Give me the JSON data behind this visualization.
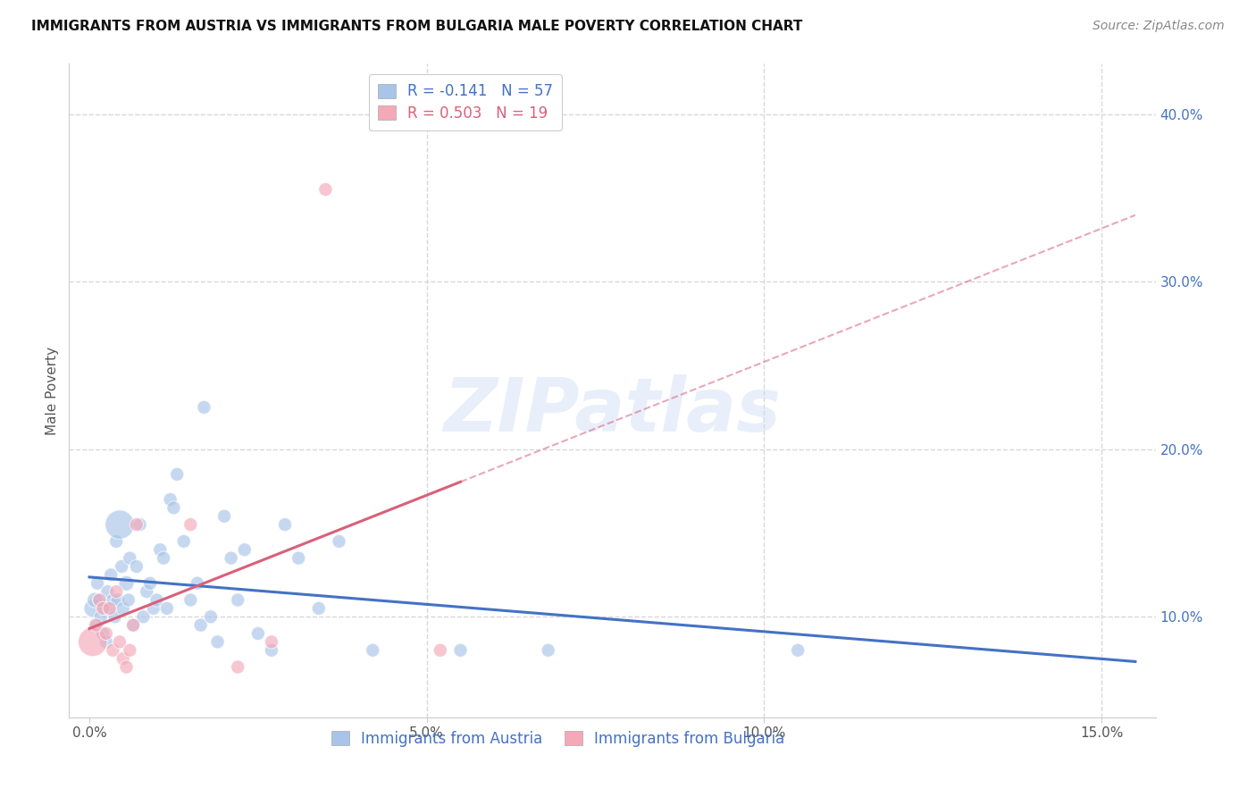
{
  "title": "IMMIGRANTS FROM AUSTRIA VS IMMIGRANTS FROM BULGARIA MALE POVERTY CORRELATION CHART",
  "source": "Source: ZipAtlas.com",
  "ylabel": "Male Poverty",
  "x_tick_labels": [
    "0.0%",
    "5.0%",
    "10.0%",
    "15.0%"
  ],
  "x_tick_values": [
    0.0,
    5.0,
    10.0,
    15.0
  ],
  "y_tick_labels": [
    "10.0%",
    "20.0%",
    "30.0%",
    "40.0%"
  ],
  "y_tick_values": [
    10.0,
    20.0,
    30.0,
    40.0
  ],
  "xlim": [
    -0.3,
    15.8
  ],
  "ylim": [
    4.0,
    43.0
  ],
  "austria_R": -0.141,
  "austria_N": 57,
  "bulgaria_R": 0.503,
  "bulgaria_N": 19,
  "austria_color": "#a8c4e8",
  "bulgaria_color": "#f4a8b8",
  "austria_line_color": "#4472c4",
  "bulgaria_line_color": "#d9607a",
  "legend_label_austria": "Immigrants from Austria",
  "legend_label_bulgaria": "Immigrants from Bulgaria",
  "watermark": "ZIPatlas",
  "background_color": "#ffffff",
  "grid_color": "#d8d8d8",
  "austria_x": [
    0.05,
    0.08,
    0.1,
    0.12,
    0.15,
    0.17,
    0.2,
    0.22,
    0.25,
    0.27,
    0.3,
    0.32,
    0.35,
    0.38,
    0.4,
    0.42,
    0.45,
    0.48,
    0.5,
    0.55,
    0.58,
    0.6,
    0.65,
    0.7,
    0.75,
    0.8,
    0.85,
    0.9,
    0.95,
    1.0,
    1.05,
    1.1,
    1.15,
    1.2,
    1.25,
    1.3,
    1.4,
    1.5,
    1.6,
    1.65,
    1.7,
    1.8,
    1.9,
    2.0,
    2.1,
    2.2,
    2.3,
    2.5,
    2.7,
    2.9,
    3.1,
    3.4,
    3.7,
    4.2,
    5.5,
    6.8,
    10.5
  ],
  "austria_y": [
    10.5,
    11.0,
    9.5,
    12.0,
    11.0,
    10.0,
    9.0,
    10.5,
    8.5,
    11.5,
    10.5,
    12.5,
    11.0,
    10.0,
    14.5,
    11.0,
    15.5,
    13.0,
    10.5,
    12.0,
    11.0,
    13.5,
    9.5,
    13.0,
    15.5,
    10.0,
    11.5,
    12.0,
    10.5,
    11.0,
    14.0,
    13.5,
    10.5,
    17.0,
    16.5,
    18.5,
    14.5,
    11.0,
    12.0,
    9.5,
    22.5,
    10.0,
    8.5,
    16.0,
    13.5,
    11.0,
    14.0,
    9.0,
    8.0,
    15.5,
    13.5,
    10.5,
    14.5,
    8.0,
    8.0,
    8.0,
    8.0
  ],
  "austria_sizes": [
    200,
    150,
    150,
    120,
    120,
    120,
    120,
    120,
    120,
    120,
    150,
    120,
    120,
    120,
    120,
    120,
    550,
    120,
    120,
    150,
    120,
    120,
    120,
    120,
    120,
    120,
    120,
    120,
    120,
    120,
    120,
    120,
    120,
    120,
    120,
    120,
    120,
    120,
    120,
    120,
    120,
    120,
    120,
    120,
    120,
    120,
    120,
    120,
    120,
    120,
    120,
    120,
    120,
    120,
    120,
    120,
    120
  ],
  "bulgaria_x": [
    0.05,
    0.1,
    0.15,
    0.2,
    0.25,
    0.3,
    0.35,
    0.4,
    0.45,
    0.5,
    0.55,
    0.6,
    0.65,
    0.7,
    1.5,
    2.2,
    2.7,
    3.5,
    5.2
  ],
  "bulgaria_y": [
    8.5,
    9.5,
    11.0,
    10.5,
    9.0,
    10.5,
    8.0,
    11.5,
    8.5,
    7.5,
    7.0,
    8.0,
    9.5,
    15.5,
    15.5,
    7.0,
    8.5,
    35.5,
    8.0
  ],
  "bulgaria_sizes": [
    550,
    120,
    120,
    120,
    120,
    120,
    120,
    120,
    120,
    120,
    120,
    120,
    120,
    120,
    120,
    120,
    120,
    120,
    120
  ],
  "title_fontsize": 11,
  "source_fontsize": 10,
  "axis_label_fontsize": 11,
  "tick_fontsize": 11,
  "legend_fontsize": 12,
  "watermark_fontsize": 60
}
